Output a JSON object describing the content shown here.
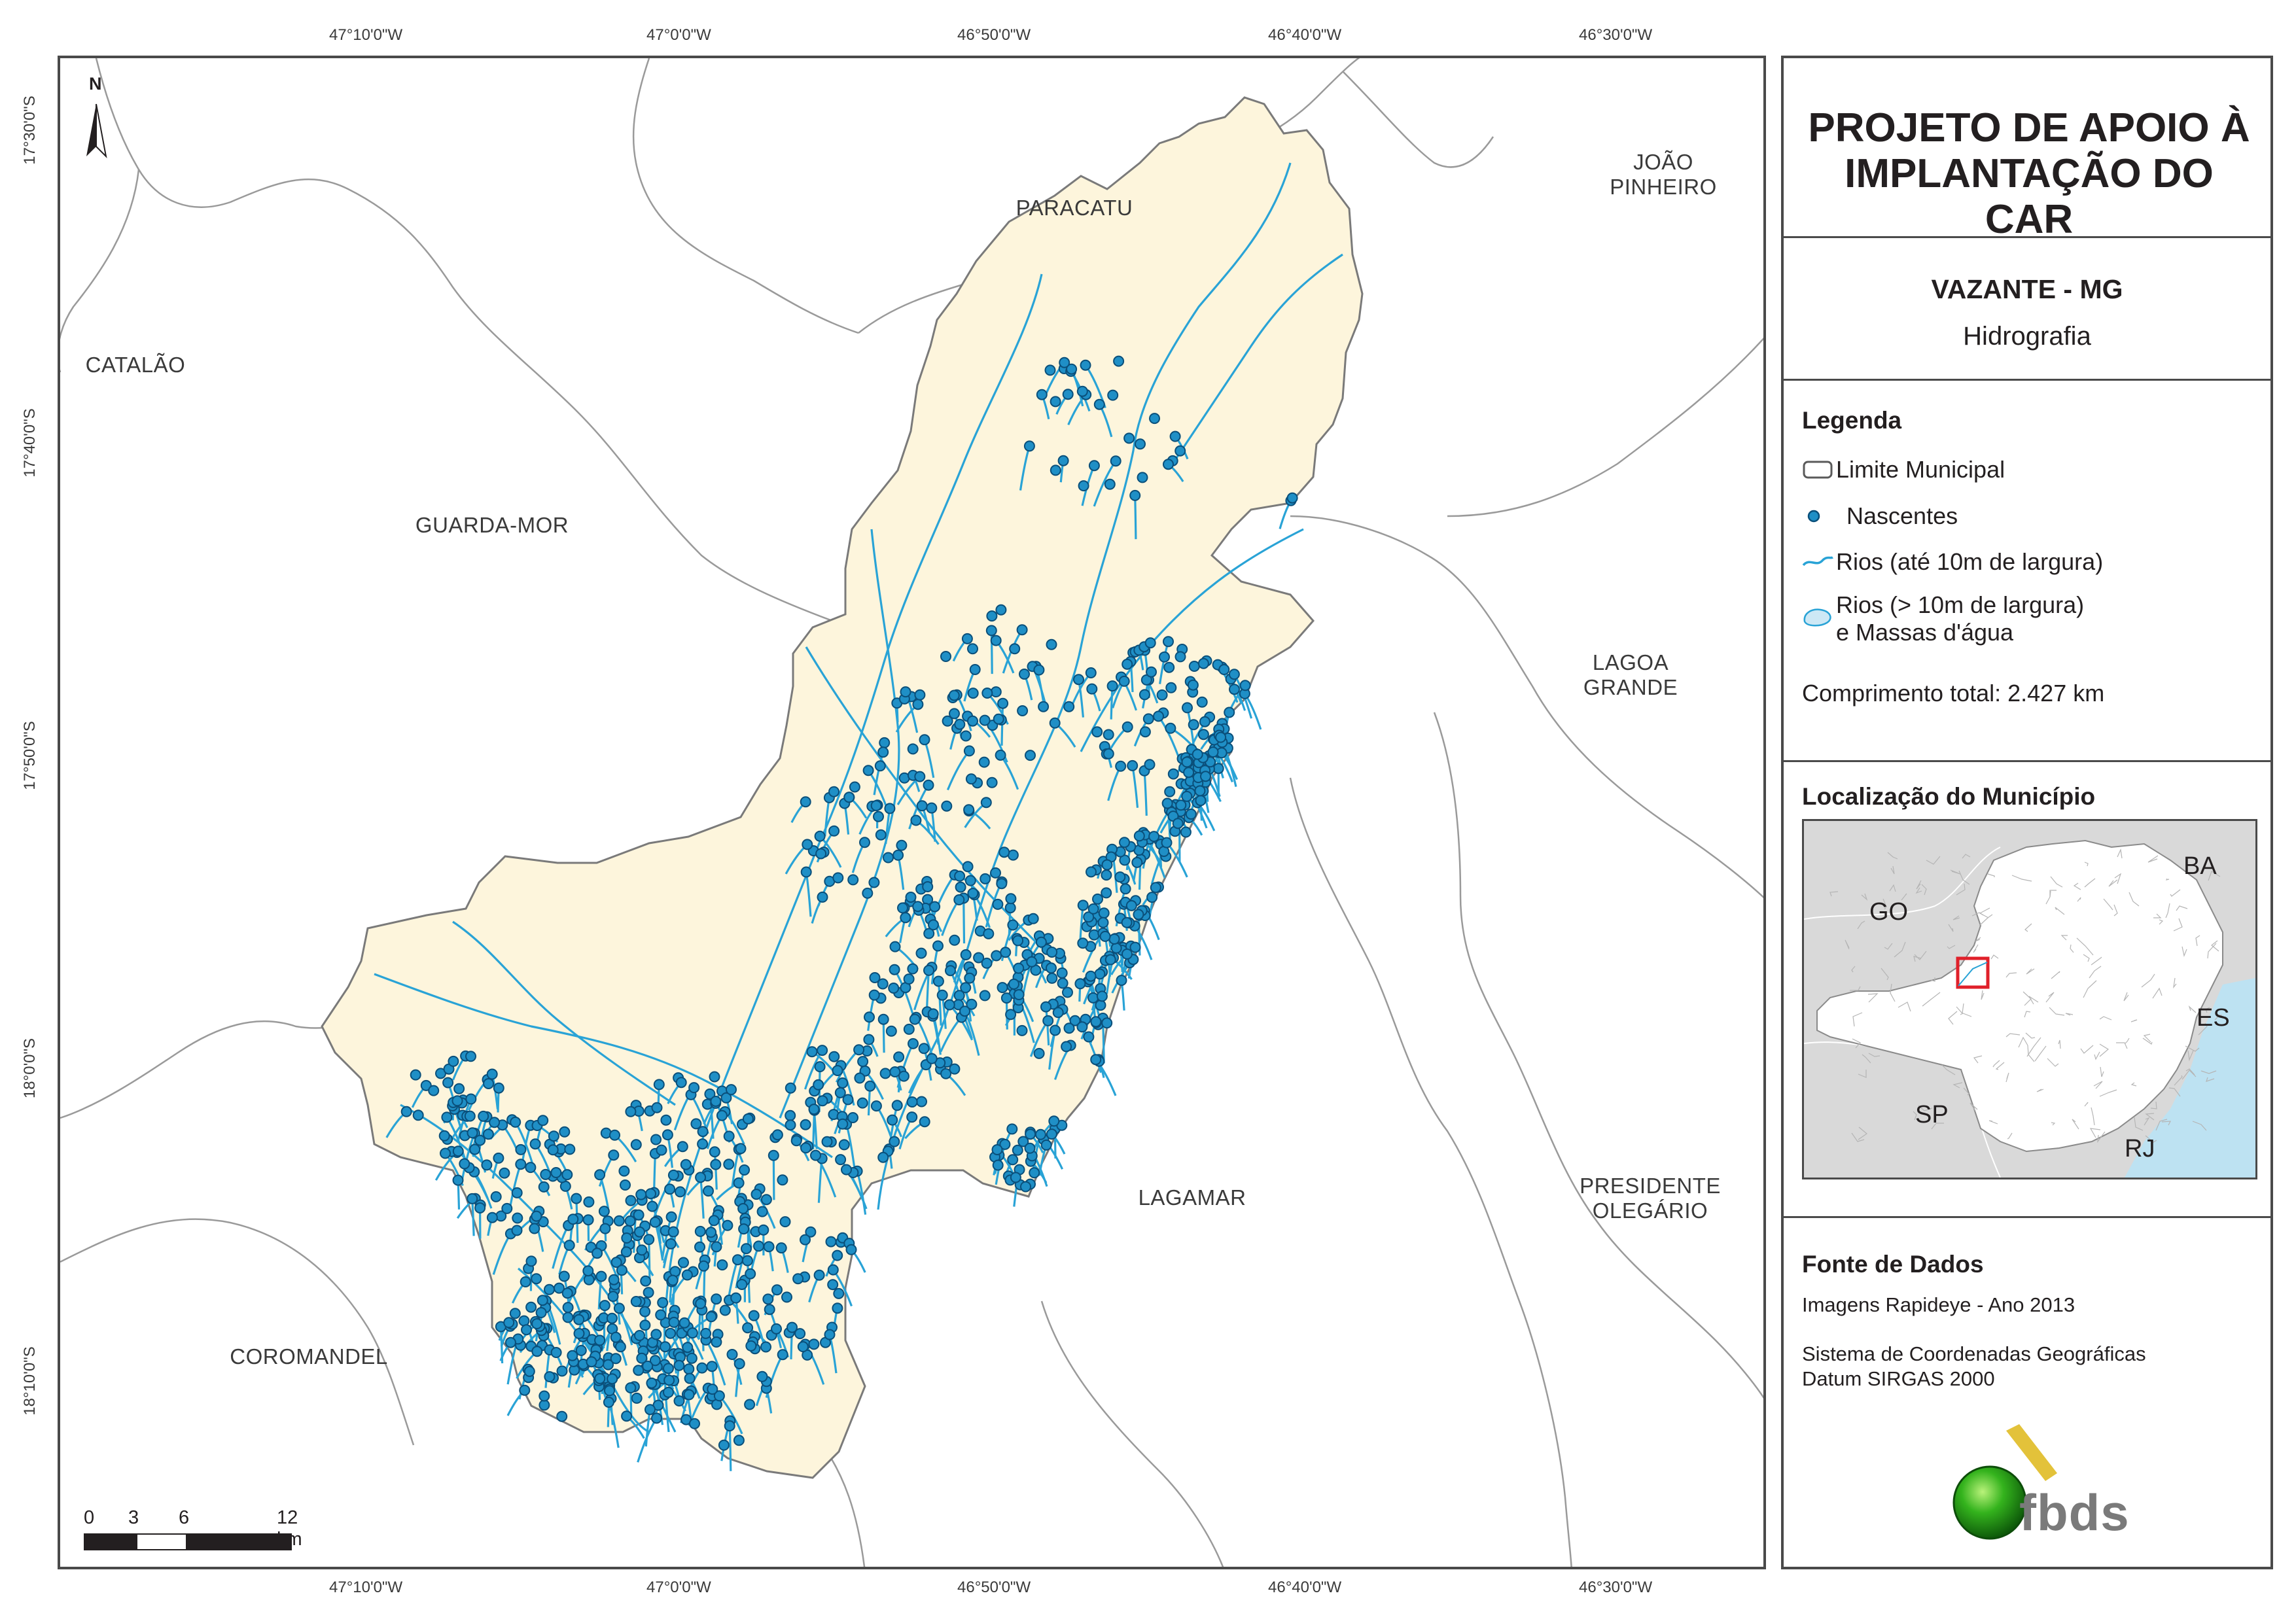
{
  "coords": {
    "top": [
      "47°10'0\"W",
      "47°0'0\"W",
      "46°50'0\"W",
      "46°40'0\"W",
      "46°30'0\"W"
    ],
    "bottom": [
      "47°10'0\"W",
      "47°0'0\"W",
      "46°50'0\"W",
      "46°40'0\"W",
      "46°30'0\"W"
    ],
    "left": [
      "17°30'0\"S",
      "17°40'0\"S",
      "17°50'0\"S",
      "18°0'0\"S",
      "18°10'0\"S"
    ]
  },
  "municipalities": {
    "paracatu": "PARACATU",
    "joao_pinheiro": "JOÃO\nPINHEIRO",
    "catalao": "CATALÃO",
    "guarda_mor": "GUARDA-MOR",
    "lagoa_grande": "LAGOA\nGRANDE",
    "lagamar": "LAGAMAR",
    "presidente_olegario": "PRESIDENTE\nOLEGÁRIO",
    "coromandel": "COROMANDEL"
  },
  "north_arrow": "N",
  "scale_bar": {
    "labels": [
      "0",
      "3",
      "6",
      "12 km"
    ]
  },
  "panel": {
    "title": "PROJETO DE APOIO À IMPLANTAÇÃO DO CAR",
    "subtitle_place": "VAZANTE - MG",
    "subtitle_theme": "Hidrografia",
    "legend_heading": "Legenda",
    "legend": {
      "limite": "Limite Municipal",
      "nascentes": "Nascentes",
      "rios_small": "Rios (até 10m de largura)",
      "rios_large_1": "Rios (> 10m de largura)",
      "rios_large_2": "e Massas d'água"
    },
    "total_length": "Comprimento total:  2.427 km",
    "location_heading": "Localização do Município",
    "locator_labels": {
      "ba": "BA",
      "go": "GO",
      "es": "ES",
      "sp": "SP",
      "rj": "RJ"
    },
    "sources_heading": "Fonte de Dados",
    "source_1": "Imagens Rapideye - Ano 2013",
    "source_2": "Sistema de Coordenadas Geográficas",
    "source_3": "Datum SIRGAS 2000",
    "logo_text": "fbds"
  },
  "colors": {
    "municipality_fill": "#fdf5dc",
    "river": "#29a3d6",
    "spring_fill": "#1f8fc6",
    "spring_stroke": "#0a4f7a",
    "boundary": "#9a9a9a",
    "water_body": "#cde8f5",
    "locator_highlight": "#e0202a"
  }
}
